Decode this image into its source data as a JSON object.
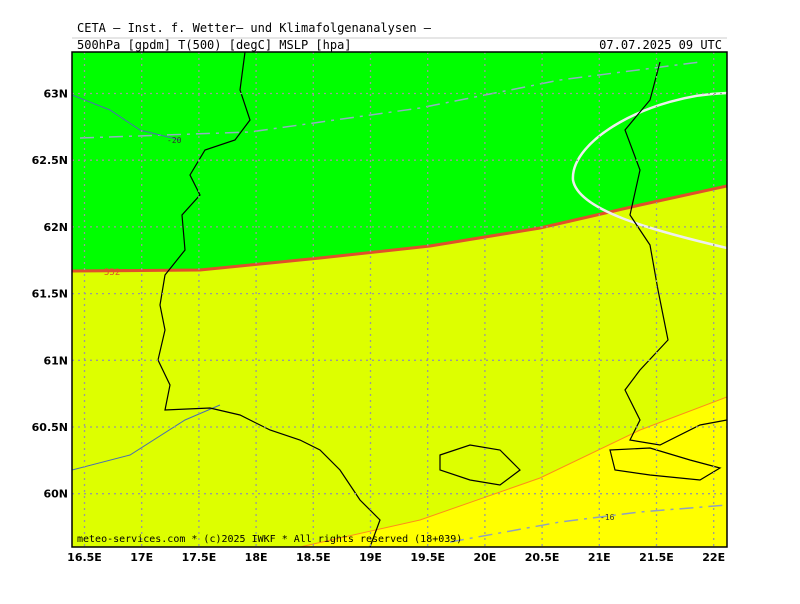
{
  "header": {
    "title": "CETA — Inst. f. Wetter— und Klimafolgenanalysen —",
    "subtitle": "500hPa [gpdm] T(500) [degC] MSLP [hpa]",
    "valid_time": "07.07.2025 09 UTC"
  },
  "map": {
    "longitude_labels": [
      "16.5E",
      "17E",
      "17.5E",
      "18E",
      "18.5E",
      "19E",
      "19.5E",
      "20E",
      "20.5E",
      "21E",
      "21.5E",
      "22E"
    ],
    "latitude_labels": [
      "63N",
      "62.5N",
      "62N",
      "61.5N",
      "61N",
      "60.5N",
      "60N"
    ],
    "contour_labels": [
      "-20",
      "552",
      "-16"
    ],
    "footer": "meteo-services.com * (c)2025 IWKF * All rights reserved (18+039)"
  }
}
